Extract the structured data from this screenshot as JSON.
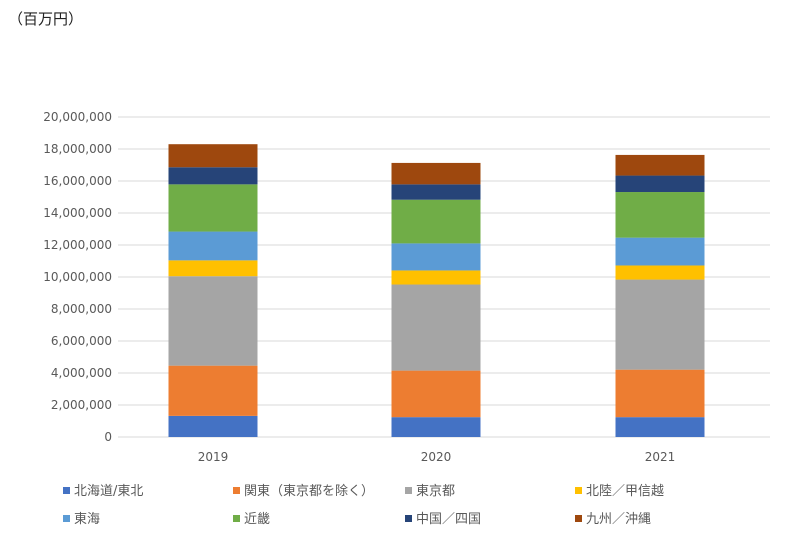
{
  "unit_label": "（百万円）",
  "chart_data": {
    "type": "stacked-bar",
    "title": "",
    "xlabel": "",
    "ylabel": "（百万円）",
    "ylim": [
      0,
      20000000
    ],
    "yticks": [
      0,
      2000000,
      4000000,
      6000000,
      8000000,
      10000000,
      12000000,
      14000000,
      16000000,
      18000000,
      20000000
    ],
    "ytick_labels": [
      "0",
      "2,000,000",
      "4,000,000",
      "6,000,000",
      "8,000,000",
      "10,000,000",
      "12,000,000",
      "14,000,000",
      "16,000,000",
      "18,000,000",
      "20,000,000"
    ],
    "grid": true,
    "legend_position": "bottom",
    "categories": [
      "2019",
      "2020",
      "2021"
    ],
    "series": [
      {
        "name": "北海道/東北",
        "color": "#4472c4",
        "values": [
          1320000,
          1240000,
          1240000
        ]
      },
      {
        "name": "関東（東京都を除く）",
        "color": "#ed7d31",
        "values": [
          3140000,
          2910000,
          2970000
        ]
      },
      {
        "name": "東京都",
        "color": "#a5a5a5",
        "values": [
          5590000,
          5380000,
          5630000
        ]
      },
      {
        "name": "北陸／甲信越",
        "color": "#ffc000",
        "values": [
          990000,
          880000,
          880000
        ]
      },
      {
        "name": "東海",
        "color": "#5b9bd5",
        "values": [
          1800000,
          1690000,
          1740000
        ]
      },
      {
        "name": "近畿",
        "color": "#70ad47",
        "values": [
          2950000,
          2730000,
          2850000
        ]
      },
      {
        "name": "中国／四国",
        "color": "#264478",
        "values": [
          1070000,
          960000,
          1030000
        ]
      },
      {
        "name": "九州／沖縄",
        "color": "#9e480e",
        "values": [
          1440000,
          1340000,
          1290000
        ]
      }
    ]
  }
}
